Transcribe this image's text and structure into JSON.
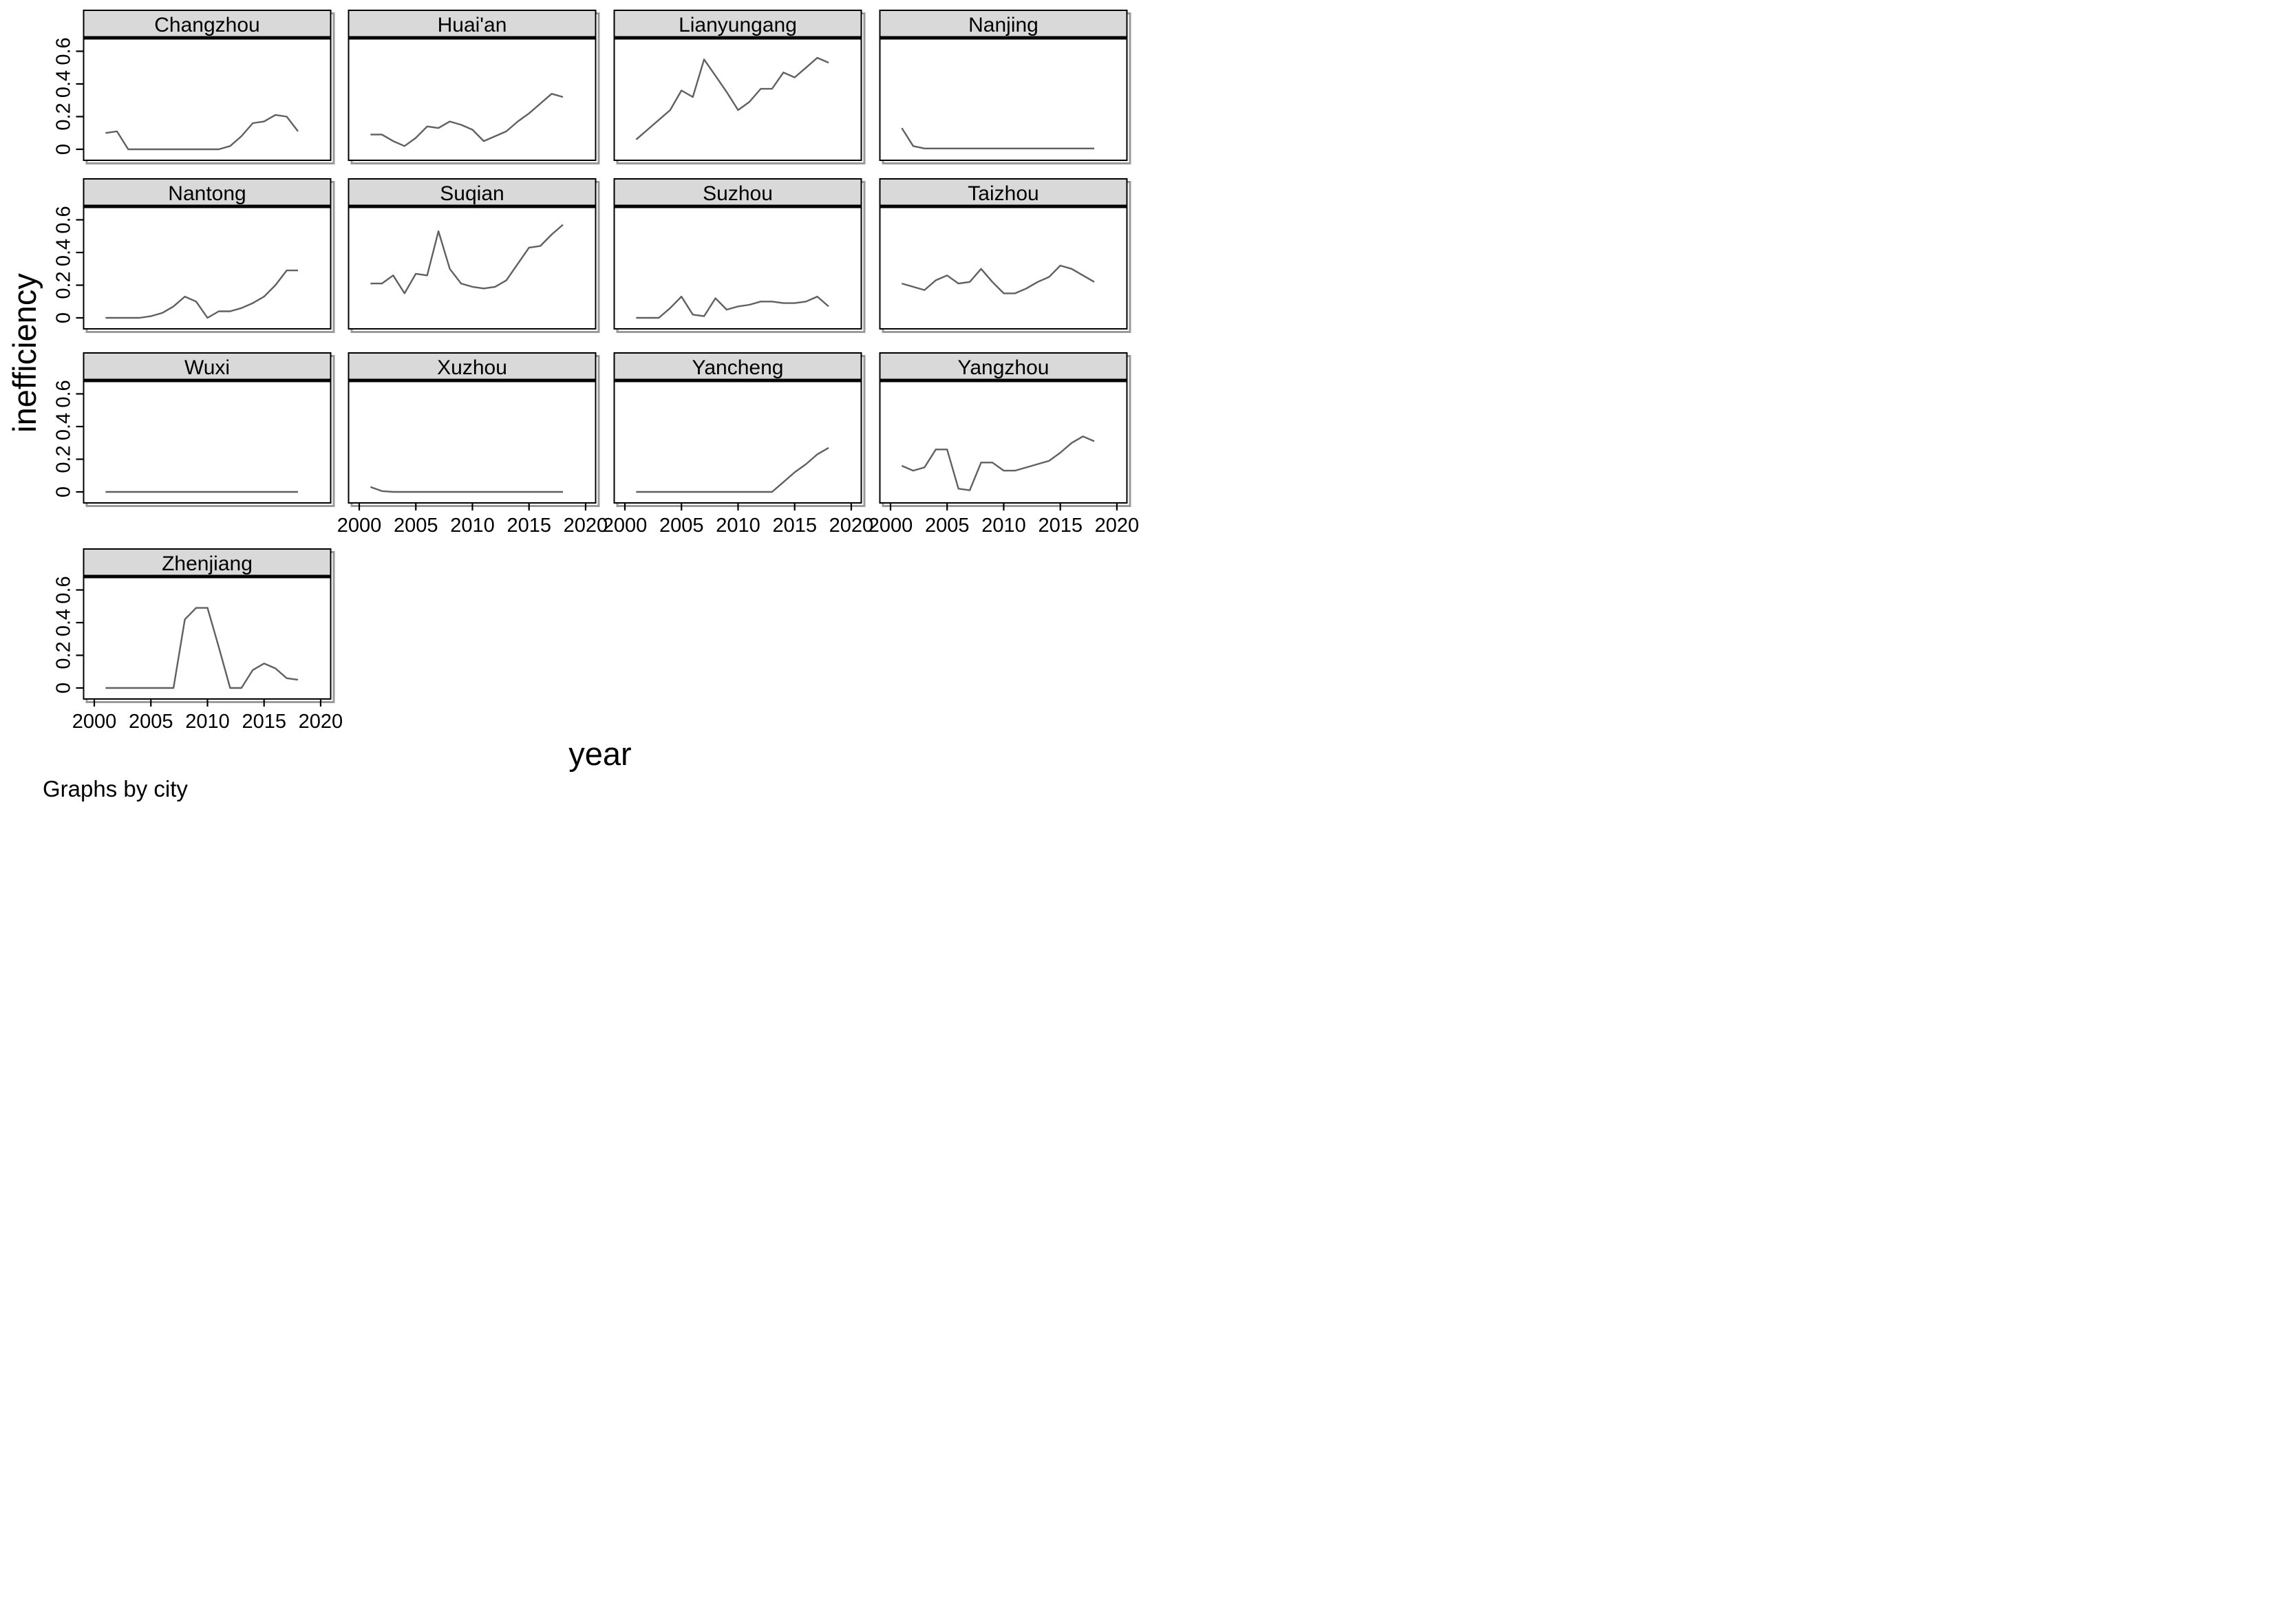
{
  "figure": {
    "y_axis_title": "inefficiency",
    "x_axis_title": "year",
    "caption": "Graphs by city",
    "colors": {
      "line": "#606060",
      "header_fill": "#d9d9d9",
      "border": "#000000",
      "shadow": "#9a9a9a",
      "background": "#ffffff"
    }
  },
  "chart_data": {
    "type": "line",
    "title": "",
    "xlabel": "year",
    "ylabel": "inefficiency",
    "facet_by": "city",
    "grid": false,
    "legend": "none",
    "x": [
      2001,
      2002,
      2003,
      2004,
      2005,
      2006,
      2007,
      2008,
      2009,
      2010,
      2011,
      2012,
      2013,
      2014,
      2015,
      2016,
      2017,
      2018
    ],
    "xlim": [
      1999.1,
      2020.9
    ],
    "ylim": [
      -0.07,
      0.68
    ],
    "x_ticks": [
      2000,
      2005,
      2010,
      2015,
      2020
    ],
    "x_tick_labels": [
      "2000",
      "2005",
      "2010",
      "2015",
      "2020"
    ],
    "y_ticks": [
      0,
      0.2,
      0.4,
      0.6
    ],
    "y_tick_labels": [
      "0",
      "0.2",
      "0.4",
      "0.6"
    ],
    "series": [
      {
        "name": "Changzhou",
        "values": [
          0.1,
          0.11,
          0.0,
          0.0,
          0.0,
          0.0,
          0.0,
          0.0,
          0.0,
          0.0,
          0.0,
          0.02,
          0.08,
          0.16,
          0.17,
          0.21,
          0.2,
          0.11
        ]
      },
      {
        "name": "Huai'an",
        "values": [
          0.09,
          0.09,
          0.05,
          0.02,
          0.07,
          0.14,
          0.13,
          0.17,
          0.15,
          0.12,
          0.05,
          0.08,
          0.11,
          0.17,
          0.22,
          0.28,
          0.34,
          0.32
        ]
      },
      {
        "name": "Lianyungang",
        "values": [
          0.06,
          0.12,
          0.18,
          0.24,
          0.36,
          0.32,
          0.55,
          0.45,
          0.35,
          0.24,
          0.29,
          0.37,
          0.37,
          0.47,
          0.44,
          0.5,
          0.56,
          0.53
        ]
      },
      {
        "name": "Nanjing",
        "values": [
          0.13,
          0.02,
          0.005,
          0.005,
          0.005,
          0.005,
          0.005,
          0.005,
          0.005,
          0.005,
          0.005,
          0.005,
          0.005,
          0.005,
          0.005,
          0.005,
          0.005,
          0.005
        ]
      },
      {
        "name": "Nantong",
        "values": [
          0.0,
          0.0,
          0.0,
          0.0,
          0.01,
          0.03,
          0.07,
          0.13,
          0.1,
          0.0,
          0.04,
          0.04,
          0.06,
          0.09,
          0.13,
          0.2,
          0.29,
          0.29
        ]
      },
      {
        "name": "Suqian",
        "values": [
          0.21,
          0.21,
          0.26,
          0.15,
          0.27,
          0.26,
          0.53,
          0.3,
          0.21,
          0.19,
          0.18,
          0.19,
          0.23,
          0.33,
          0.43,
          0.44,
          0.51,
          0.57
        ]
      },
      {
        "name": "Suzhou",
        "values": [
          0.0,
          0.0,
          0.0,
          0.06,
          0.13,
          0.02,
          0.01,
          0.12,
          0.05,
          0.07,
          0.08,
          0.1,
          0.1,
          0.09,
          0.09,
          0.1,
          0.13,
          0.07
        ]
      },
      {
        "name": "Taizhou",
        "values": [
          0.21,
          0.19,
          0.17,
          0.23,
          0.26,
          0.21,
          0.22,
          0.3,
          0.22,
          0.15,
          0.15,
          0.18,
          0.22,
          0.25,
          0.32,
          0.3,
          0.26,
          0.22
        ]
      },
      {
        "name": "Wuxi",
        "values": [
          0.0,
          0.0,
          0.0,
          0.0,
          0.0,
          0.0,
          0.0,
          0.0,
          0.0,
          0.0,
          0.0,
          0.0,
          0.0,
          0.0,
          0.0,
          0.0,
          0.0,
          0.0
        ]
      },
      {
        "name": "Xuzhou",
        "values": [
          0.03,
          0.005,
          0.0,
          0.0,
          0.0,
          0.0,
          0.0,
          0.0,
          0.0,
          0.0,
          0.0,
          0.0,
          0.0,
          0.0,
          0.0,
          0.0,
          0.0,
          0.0
        ]
      },
      {
        "name": "Yancheng",
        "values": [
          0.0,
          0.0,
          0.0,
          0.0,
          0.0,
          0.0,
          0.0,
          0.0,
          0.0,
          0.0,
          0.0,
          0.0,
          0.0,
          0.06,
          0.12,
          0.17,
          0.23,
          0.27
        ]
      },
      {
        "name": "Yangzhou",
        "values": [
          0.16,
          0.13,
          0.15,
          0.26,
          0.26,
          0.02,
          0.01,
          0.18,
          0.18,
          0.13,
          0.13,
          0.15,
          0.17,
          0.19,
          0.24,
          0.3,
          0.34,
          0.31
        ]
      },
      {
        "name": "Zhenjiang",
        "values": [
          0.0,
          0.0,
          0.0,
          0.0,
          0.0,
          0.0,
          0.0,
          0.42,
          0.49,
          0.49,
          0.25,
          0.0,
          0.0,
          0.11,
          0.15,
          0.12,
          0.06,
          0.05
        ]
      }
    ]
  }
}
